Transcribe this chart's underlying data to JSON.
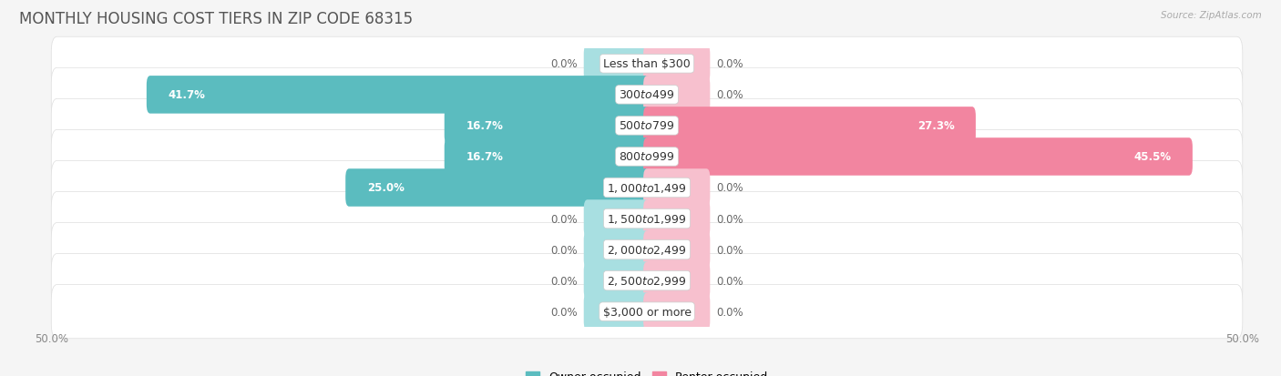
{
  "title": "MONTHLY HOUSING COST TIERS IN ZIP CODE 68315",
  "source": "Source: ZipAtlas.com",
  "categories": [
    "Less than $300",
    "$300 to $499",
    "$500 to $799",
    "$800 to $999",
    "$1,000 to $1,499",
    "$1,500 to $1,999",
    "$2,000 to $2,499",
    "$2,500 to $2,999",
    "$3,000 or more"
  ],
  "owner_values": [
    0.0,
    41.7,
    16.7,
    16.7,
    25.0,
    0.0,
    0.0,
    0.0,
    0.0
  ],
  "renter_values": [
    0.0,
    0.0,
    27.3,
    45.5,
    0.0,
    0.0,
    0.0,
    0.0,
    0.0
  ],
  "owner_color": "#5bbcbf",
  "renter_color": "#f285a0",
  "owner_color_light": "#a8dfe1",
  "renter_color_light": "#f7c0ce",
  "row_bg": "#f0f0f0",
  "row_bg_alt": "#fafafa",
  "bar_height": 0.62,
  "xlim_left": -50,
  "xlim_right": 50,
  "stub_size": 5.0,
  "title_fontsize": 12,
  "label_fontsize": 9,
  "value_fontsize": 8.5,
  "legend_fontsize": 9,
  "background_color": "#f5f5f5"
}
